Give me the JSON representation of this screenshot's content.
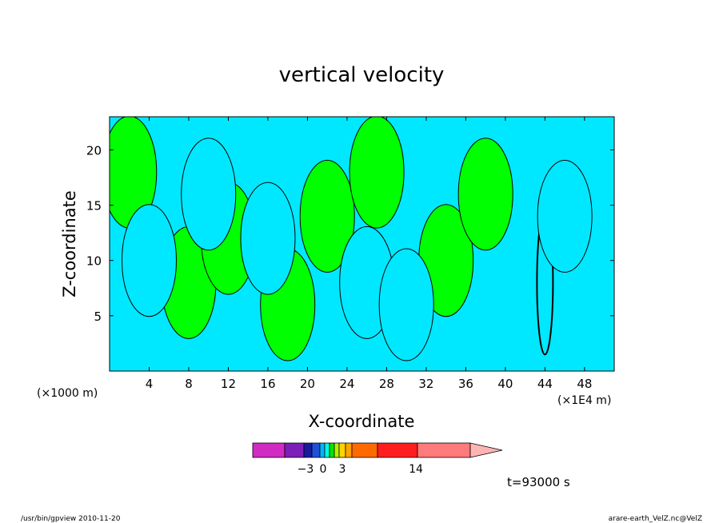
{
  "chart_data": {
    "type": "heatmap",
    "title": "vertical velocity",
    "xlabel": "X-coordinate",
    "ylabel": "Z-coordinate",
    "x_unit_label": "(×1000 m)",
    "x_unit_label_right": "(×1E4 m)",
    "x_ticks": [
      "4",
      "8",
      "12",
      "16",
      "20",
      "24",
      "28",
      "32",
      "36",
      "40",
      "44",
      "48"
    ],
    "y_ticks": [
      "5",
      "10",
      "15",
      "20"
    ],
    "xlim": [
      0,
      51
    ],
    "ylim": [
      0,
      23
    ],
    "time_label": "t=93000 s",
    "colorbar": {
      "tick_labels": [
        "−3",
        "0",
        "3",
        "14"
      ],
      "colors": [
        "#d12bc3",
        "#7b1fb8",
        "#1a1aa0",
        "#1d4fd8",
        "#00b4ff",
        "#00ffdc",
        "#00e600",
        "#b4f000",
        "#ffd400",
        "#ffa500",
        "#ff6a00",
        "#ff1e1e",
        "#ff7a7a",
        "#ffb4b4"
      ]
    },
    "dominant_colors": {
      "positive": "#00ff00",
      "negative": "#00e8ff",
      "strong": "#000000"
    },
    "cells": [
      {
        "x": 2,
        "z": 18,
        "v": 1
      },
      {
        "x": 8,
        "z": 8,
        "v": 1
      },
      {
        "x": 12,
        "z": 12,
        "v": 1
      },
      {
        "x": 18,
        "z": 6,
        "v": 1
      },
      {
        "x": 22,
        "z": 14,
        "v": 1
      },
      {
        "x": 27,
        "z": 18,
        "v": 1
      },
      {
        "x": 34,
        "z": 10,
        "v": 1
      },
      {
        "x": 38,
        "z": 16,
        "v": 1
      },
      {
        "x": 44,
        "z": 8,
        "v": 3
      },
      {
        "x": 4,
        "z": 10,
        "v": -1
      },
      {
        "x": 10,
        "z": 16,
        "v": -1
      },
      {
        "x": 16,
        "z": 12,
        "v": -1
      },
      {
        "x": 26,
        "z": 8,
        "v": -1
      },
      {
        "x": 30,
        "z": 6,
        "v": -1
      },
      {
        "x": 46,
        "z": 14,
        "v": -1
      }
    ]
  },
  "footer": {
    "left": "/usr/bin/gpview  2010-11-20",
    "right": "arare-earth_VelZ.nc@VelZ"
  }
}
